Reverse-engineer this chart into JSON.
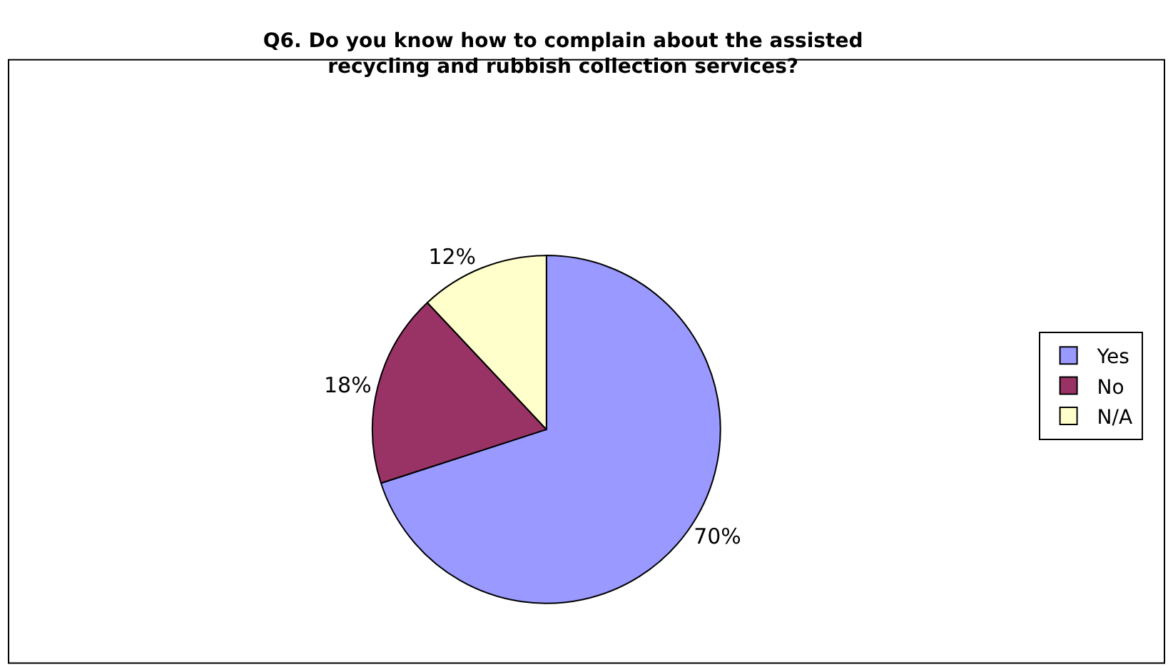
{
  "chart_data": {
    "type": "pie",
    "title": "Q6. Do you know how to complain about the assisted\nrecycling and rubbish collection services?",
    "categories": [
      "Yes",
      "No",
      "N/A"
    ],
    "values": [
      70,
      18,
      12
    ],
    "value_labels": [
      "70%",
      "18%",
      "12%"
    ],
    "colors": [
      "#9999ff",
      "#993366",
      "#ffffcc"
    ],
    "legend": "right"
  }
}
